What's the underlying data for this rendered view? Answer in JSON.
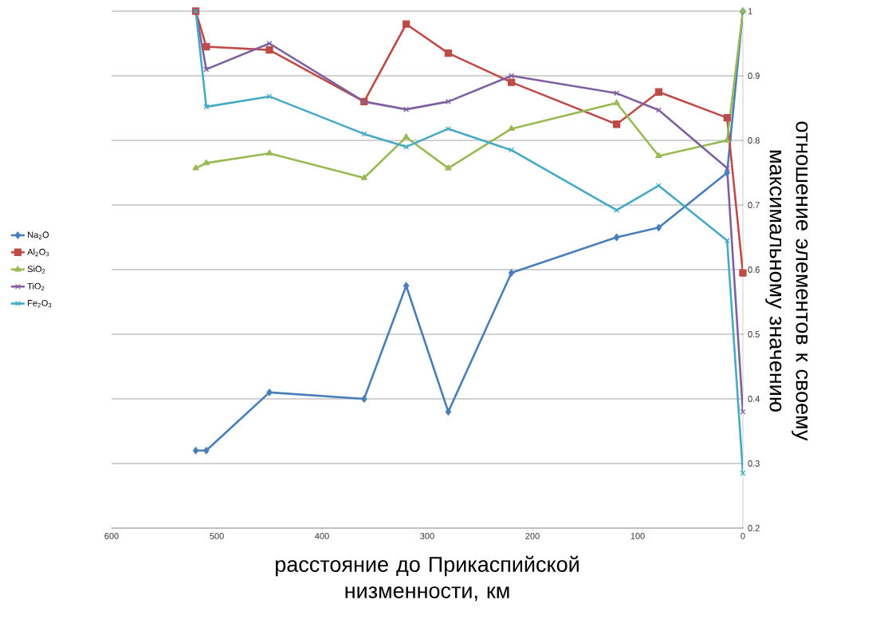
{
  "chart_data": {
    "type": "line",
    "xlabel": "расстояние до Прикаспийской низменности, км",
    "ylabel": "отношение элементов к своему максимальному значению",
    "x": [
      520,
      510,
      450,
      360,
      320,
      280,
      220,
      120,
      80,
      15,
      0
    ],
    "xlim": [
      600,
      0
    ],
    "xticks": [
      600,
      500,
      400,
      300,
      200,
      100,
      0
    ],
    "ylim": [
      0.2,
      1
    ],
    "yticks": [
      0.2,
      0.3,
      0.4,
      0.5,
      0.6,
      0.7,
      0.8,
      0.9,
      1
    ],
    "grid": "y",
    "legend": "left",
    "line_style": "solid",
    "series": [
      {
        "name": "Na$_{2}$O",
        "color": "#4a7ebb",
        "marker": "diamond",
        "values": [
          0.32,
          0.32,
          0.41,
          0.4,
          0.575,
          0.38,
          0.595,
          0.65,
          0.665,
          0.75,
          1.0
        ]
      },
      {
        "name": "Al$_{2}$O$_{3}$",
        "color": "#be4b48",
        "marker": "square",
        "values": [
          1.0,
          0.945,
          0.94,
          0.86,
          0.98,
          0.935,
          0.89,
          0.825,
          0.875,
          0.835,
          0.595
        ]
      },
      {
        "name": "SiO$_{2}$",
        "color": "#98b954",
        "marker": "triangle",
        "values": [
          0.757,
          0.765,
          0.78,
          0.742,
          0.805,
          0.757,
          0.818,
          0.858,
          0.776,
          0.8,
          1.0
        ]
      },
      {
        "name": "TiO$_{2}$",
        "color": "#7d60a0",
        "marker": "cross",
        "values": [
          1.0,
          0.91,
          0.95,
          0.86,
          0.848,
          0.86,
          0.9,
          0.873,
          0.847,
          0.757,
          0.38
        ]
      },
      {
        "name": "Fe$_{2}$O$_{3}$",
        "color": "#46aac5",
        "marker": "cross",
        "values": [
          1.0,
          0.852,
          0.868,
          0.81,
          0.79,
          0.818,
          0.785,
          0.692,
          0.73,
          0.645,
          0.285
        ]
      }
    ]
  }
}
